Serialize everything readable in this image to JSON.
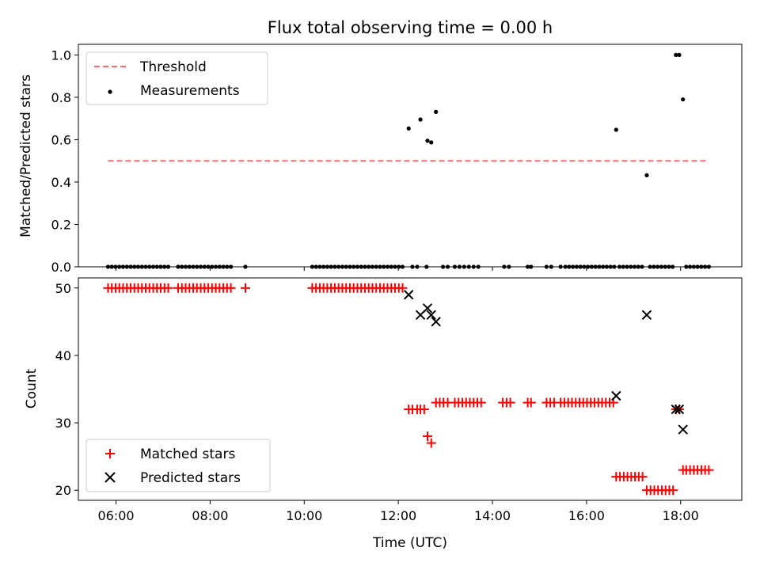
{
  "figure": {
    "title": "Flux total observing time = 0.00 h",
    "xlabel": "Time (UTC)"
  },
  "chart_data": [
    {
      "type": "scatter",
      "title": "Flux total observing time = 0.00 h",
      "ylabel": "Matched/Predicted stars",
      "xlabel": "",
      "xlim": [
        5.2,
        19.3
      ],
      "ylim": [
        0,
        1.05
      ],
      "yticks": [
        0.0,
        0.2,
        0.4,
        0.6,
        0.8,
        1.0
      ],
      "ytick_labels": [
        "0.0",
        "0.2",
        "0.4",
        "0.6",
        "0.8",
        "1.0"
      ],
      "legend": {
        "position": "top-left",
        "entries": [
          "Threshold",
          "Measurements"
        ]
      },
      "threshold": {
        "name": "Threshold",
        "y": 0.5,
        "x_start": 5.83,
        "x_end": 18.6,
        "color": "#ff6b6b"
      },
      "series": [
        {
          "name": "Measurements",
          "marker": "dot",
          "color": "#000000",
          "points": [
            [
              5.83,
              0
            ],
            [
              5.91,
              0
            ],
            [
              5.99,
              0
            ],
            [
              6.07,
              0
            ],
            [
              6.15,
              0
            ],
            [
              6.23,
              0
            ],
            [
              6.31,
              0
            ],
            [
              6.39,
              0
            ],
            [
              6.47,
              0
            ],
            [
              6.55,
              0
            ],
            [
              6.63,
              0
            ],
            [
              6.71,
              0
            ],
            [
              6.79,
              0
            ],
            [
              6.87,
              0
            ],
            [
              6.95,
              0
            ],
            [
              7.03,
              0
            ],
            [
              7.11,
              0
            ],
            [
              7.32,
              0
            ],
            [
              7.4,
              0
            ],
            [
              7.48,
              0
            ],
            [
              7.56,
              0
            ],
            [
              7.64,
              0
            ],
            [
              7.72,
              0
            ],
            [
              7.8,
              0
            ],
            [
              7.88,
              0
            ],
            [
              7.96,
              0
            ],
            [
              8.04,
              0
            ],
            [
              8.12,
              0
            ],
            [
              8.2,
              0
            ],
            [
              8.28,
              0
            ],
            [
              8.36,
              0
            ],
            [
              8.44,
              0
            ],
            [
              8.75,
              0
            ],
            [
              10.17,
              0
            ],
            [
              10.25,
              0
            ],
            [
              10.33,
              0
            ],
            [
              10.41,
              0
            ],
            [
              10.49,
              0
            ],
            [
              10.57,
              0
            ],
            [
              10.65,
              0
            ],
            [
              10.73,
              0
            ],
            [
              10.81,
              0
            ],
            [
              10.89,
              0
            ],
            [
              10.97,
              0
            ],
            [
              11.05,
              0
            ],
            [
              11.13,
              0
            ],
            [
              11.21,
              0
            ],
            [
              11.29,
              0
            ],
            [
              11.37,
              0
            ],
            [
              11.45,
              0
            ],
            [
              11.53,
              0
            ],
            [
              11.61,
              0
            ],
            [
              11.69,
              0
            ],
            [
              11.77,
              0
            ],
            [
              11.85,
              0
            ],
            [
              11.93,
              0
            ],
            [
              12.01,
              0
            ],
            [
              12.09,
              0
            ],
            [
              12.22,
              0.653
            ],
            [
              12.47,
              0.695
            ],
            [
              12.62,
              0.595
            ],
            [
              12.7,
              0.587
            ],
            [
              12.8,
              0.731
            ],
            [
              12.3,
              0
            ],
            [
              12.4,
              0
            ],
            [
              12.6,
              0
            ],
            [
              12.95,
              0
            ],
            [
              13.05,
              0
            ],
            [
              13.2,
              0
            ],
            [
              13.3,
              0
            ],
            [
              13.4,
              0
            ],
            [
              13.5,
              0
            ],
            [
              13.6,
              0
            ],
            [
              13.7,
              0
            ],
            [
              14.25,
              0
            ],
            [
              14.35,
              0
            ],
            [
              14.75,
              0
            ],
            [
              14.82,
              0
            ],
            [
              15.15,
              0
            ],
            [
              15.25,
              0
            ],
            [
              15.45,
              0
            ],
            [
              15.55,
              0
            ],
            [
              15.63,
              0
            ],
            [
              15.71,
              0
            ],
            [
              15.79,
              0
            ],
            [
              15.87,
              0
            ],
            [
              15.95,
              0
            ],
            [
              16.03,
              0
            ],
            [
              16.11,
              0
            ],
            [
              16.19,
              0
            ],
            [
              16.27,
              0
            ],
            [
              16.35,
              0
            ],
            [
              16.43,
              0
            ],
            [
              16.51,
              0
            ],
            [
              16.59,
              0
            ],
            [
              16.63,
              0.647
            ],
            [
              17.28,
              0.432
            ],
            [
              17.9,
              1.0
            ],
            [
              17.97,
              1.0
            ],
            [
              18.05,
              0.79
            ],
            [
              16.7,
              0
            ],
            [
              16.78,
              0
            ],
            [
              16.86,
              0
            ],
            [
              16.94,
              0
            ],
            [
              17.02,
              0
            ],
            [
              17.1,
              0
            ],
            [
              17.18,
              0
            ],
            [
              17.35,
              0
            ],
            [
              17.43,
              0
            ],
            [
              17.51,
              0
            ],
            [
              17.59,
              0
            ],
            [
              17.67,
              0
            ],
            [
              17.75,
              0
            ],
            [
              17.83,
              0
            ],
            [
              18.12,
              0
            ],
            [
              18.2,
              0
            ],
            [
              18.28,
              0
            ],
            [
              18.36,
              0
            ],
            [
              18.44,
              0
            ],
            [
              18.52,
              0
            ],
            [
              18.6,
              0
            ]
          ]
        }
      ]
    },
    {
      "type": "scatter",
      "ylabel": "Count",
      "xlabel": "Time (UTC)",
      "xlim": [
        5.2,
        19.3
      ],
      "ylim": [
        18.5,
        51.5
      ],
      "xticks": [
        6,
        8,
        10,
        12,
        14,
        16,
        18
      ],
      "xtick_labels": [
        "06:00",
        "08:00",
        "10:00",
        "12:00",
        "14:00",
        "16:00",
        "18:00"
      ],
      "yticks": [
        20,
        30,
        40,
        50
      ],
      "ytick_labels": [
        "20",
        "30",
        "40",
        "50"
      ],
      "legend": {
        "position": "lower-left",
        "entries": [
          "Matched stars",
          "Predicted stars"
        ]
      },
      "series": [
        {
          "name": "Matched stars",
          "marker": "plus",
          "color": "#ff0000",
          "points": [
            [
              5.83,
              50
            ],
            [
              5.91,
              50
            ],
            [
              5.99,
              50
            ],
            [
              6.07,
              50
            ],
            [
              6.15,
              50
            ],
            [
              6.23,
              50
            ],
            [
              6.31,
              50
            ],
            [
              6.39,
              50
            ],
            [
              6.47,
              50
            ],
            [
              6.55,
              50
            ],
            [
              6.63,
              50
            ],
            [
              6.71,
              50
            ],
            [
              6.79,
              50
            ],
            [
              6.87,
              50
            ],
            [
              6.95,
              50
            ],
            [
              7.03,
              50
            ],
            [
              7.11,
              50
            ],
            [
              7.32,
              50
            ],
            [
              7.4,
              50
            ],
            [
              7.48,
              50
            ],
            [
              7.56,
              50
            ],
            [
              7.64,
              50
            ],
            [
              7.72,
              50
            ],
            [
              7.8,
              50
            ],
            [
              7.88,
              50
            ],
            [
              7.96,
              50
            ],
            [
              8.04,
              50
            ],
            [
              8.12,
              50
            ],
            [
              8.2,
              50
            ],
            [
              8.28,
              50
            ],
            [
              8.36,
              50
            ],
            [
              8.44,
              50
            ],
            [
              8.75,
              50
            ],
            [
              10.17,
              50
            ],
            [
              10.25,
              50
            ],
            [
              10.33,
              50
            ],
            [
              10.41,
              50
            ],
            [
              10.49,
              50
            ],
            [
              10.57,
              50
            ],
            [
              10.65,
              50
            ],
            [
              10.73,
              50
            ],
            [
              10.81,
              50
            ],
            [
              10.89,
              50
            ],
            [
              10.97,
              50
            ],
            [
              11.05,
              50
            ],
            [
              11.13,
              50
            ],
            [
              11.21,
              50
            ],
            [
              11.29,
              50
            ],
            [
              11.37,
              50
            ],
            [
              11.45,
              50
            ],
            [
              11.53,
              50
            ],
            [
              11.61,
              50
            ],
            [
              11.69,
              50
            ],
            [
              11.77,
              50
            ],
            [
              11.85,
              50
            ],
            [
              11.93,
              50
            ],
            [
              12.01,
              50
            ],
            [
              12.09,
              50
            ],
            [
              12.22,
              32
            ],
            [
              12.3,
              32
            ],
            [
              12.4,
              32
            ],
            [
              12.47,
              32
            ],
            [
              12.55,
              32
            ],
            [
              12.62,
              28
            ],
            [
              12.7,
              27
            ],
            [
              12.8,
              33
            ],
            [
              12.88,
              33
            ],
            [
              12.96,
              33
            ],
            [
              13.05,
              33
            ],
            [
              13.2,
              33
            ],
            [
              13.28,
              33
            ],
            [
              13.36,
              33
            ],
            [
              13.44,
              33
            ],
            [
              13.52,
              33
            ],
            [
              13.6,
              33
            ],
            [
              13.68,
              33
            ],
            [
              13.76,
              33
            ],
            [
              14.22,
              33
            ],
            [
              14.3,
              33
            ],
            [
              14.38,
              33
            ],
            [
              14.75,
              33
            ],
            [
              14.82,
              33
            ],
            [
              15.15,
              33
            ],
            [
              15.23,
              33
            ],
            [
              15.31,
              33
            ],
            [
              15.45,
              33
            ],
            [
              15.53,
              33
            ],
            [
              15.61,
              33
            ],
            [
              15.69,
              33
            ],
            [
              15.77,
              33
            ],
            [
              15.85,
              33
            ],
            [
              15.93,
              33
            ],
            [
              16.01,
              33
            ],
            [
              16.09,
              33
            ],
            [
              16.17,
              33
            ],
            [
              16.25,
              33
            ],
            [
              16.33,
              33
            ],
            [
              16.41,
              33
            ],
            [
              16.49,
              33
            ],
            [
              16.57,
              33
            ],
            [
              16.63,
              22
            ],
            [
              16.71,
              22
            ],
            [
              16.79,
              22
            ],
            [
              16.87,
              22
            ],
            [
              16.95,
              22
            ],
            [
              17.03,
              22
            ],
            [
              17.11,
              22
            ],
            [
              17.19,
              22
            ],
            [
              17.28,
              20
            ],
            [
              17.36,
              20
            ],
            [
              17.44,
              20
            ],
            [
              17.52,
              20
            ],
            [
              17.6,
              20
            ],
            [
              17.68,
              20
            ],
            [
              17.76,
              20
            ],
            [
              17.84,
              20
            ],
            [
              17.9,
              32
            ],
            [
              17.97,
              32
            ],
            [
              18.05,
              23
            ],
            [
              18.12,
              23
            ],
            [
              18.2,
              23
            ],
            [
              18.28,
              23
            ],
            [
              18.36,
              23
            ],
            [
              18.44,
              23
            ],
            [
              18.52,
              23
            ],
            [
              18.6,
              23
            ]
          ]
        },
        {
          "name": "Predicted stars",
          "marker": "x",
          "color": "#000000",
          "points": [
            [
              12.22,
              49
            ],
            [
              12.47,
              46
            ],
            [
              12.62,
              47
            ],
            [
              12.7,
              46
            ],
            [
              12.8,
              45
            ],
            [
              16.63,
              34
            ],
            [
              17.28,
              46
            ],
            [
              17.9,
              32
            ],
            [
              17.97,
              32
            ],
            [
              18.05,
              29
            ]
          ]
        }
      ]
    }
  ]
}
